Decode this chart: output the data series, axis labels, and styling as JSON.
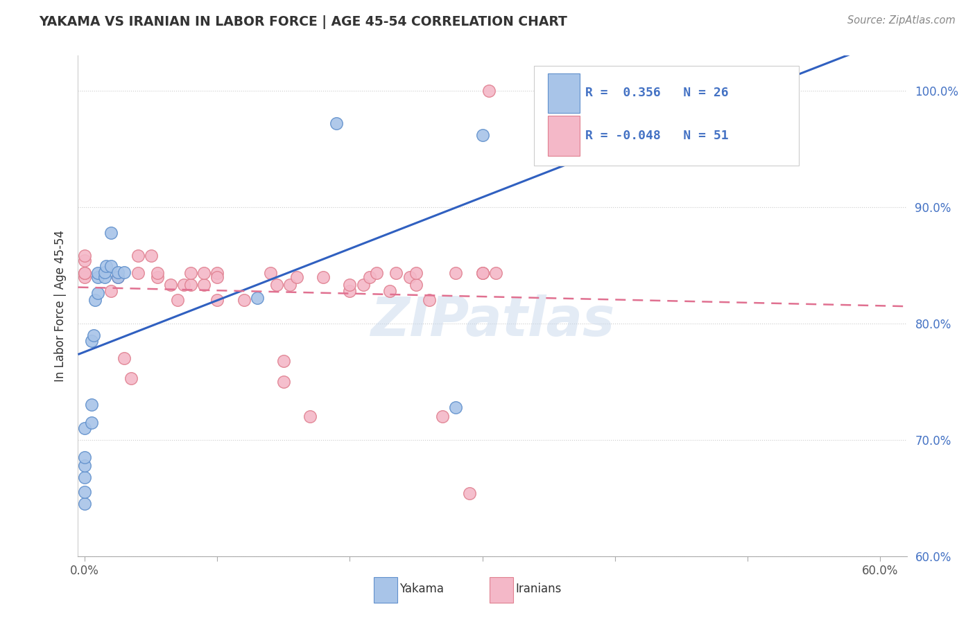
{
  "title": "YAKAMA VS IRANIAN IN LABOR FORCE | AGE 45-54 CORRELATION CHART",
  "source_text": "Source: ZipAtlas.com",
  "ylabel": "In Labor Force | Age 45-54",
  "xlim": [
    -0.005,
    0.62
  ],
  "ylim": [
    0.6,
    1.03
  ],
  "y_ticks": [
    0.6,
    0.7,
    0.8,
    0.9,
    1.0
  ],
  "y_tick_labels": [
    "60.0%",
    "70.0%",
    "80.0%",
    "90.0%",
    "100.0%"
  ],
  "x_ticks": [
    0.0,
    0.1,
    0.2,
    0.3,
    0.4,
    0.5,
    0.6
  ],
  "x_tick_label_0": "0.0%",
  "x_tick_label_last": "60.0%",
  "color_yakama_fill": "#a8c4e8",
  "color_yakama_edge": "#6090cc",
  "color_iranian_fill": "#f4b8c8",
  "color_iranian_edge": "#e08090",
  "color_line_yakama": "#3060c0",
  "color_line_iranian": "#e07090",
  "background_color": "#ffffff",
  "grid_color": "#cccccc",
  "watermark": "ZIPatlas",
  "watermark_color": "#c8d8ec",
  "title_color": "#333333",
  "ylabel_color": "#333333",
  "tick_color_y": "#4472c4",
  "tick_color_x": "#555555",
  "legend_text_color": "#4472c4",
  "legend_label_color": "#333333",
  "source_color": "#888888",
  "yakama_x": [
    0.0,
    0.0,
    0.0,
    0.0,
    0.0,
    0.0,
    0.005,
    0.005,
    0.005,
    0.007,
    0.008,
    0.01,
    0.01,
    0.01,
    0.015,
    0.015,
    0.016,
    0.02,
    0.02,
    0.025,
    0.025,
    0.03,
    0.13,
    0.19,
    0.28,
    0.3
  ],
  "yakama_y": [
    0.645,
    0.655,
    0.668,
    0.678,
    0.685,
    0.71,
    0.715,
    0.73,
    0.785,
    0.79,
    0.82,
    0.826,
    0.84,
    0.843,
    0.84,
    0.844,
    0.849,
    0.849,
    0.878,
    0.84,
    0.844,
    0.844,
    0.822,
    0.972,
    0.728,
    0.962
  ],
  "iranian_x": [
    0.0,
    0.0,
    0.0,
    0.0,
    0.0,
    0.02,
    0.025,
    0.03,
    0.035,
    0.04,
    0.04,
    0.05,
    0.055,
    0.055,
    0.065,
    0.07,
    0.075,
    0.08,
    0.08,
    0.09,
    0.09,
    0.1,
    0.1,
    0.1,
    0.12,
    0.14,
    0.145,
    0.15,
    0.15,
    0.155,
    0.16,
    0.17,
    0.18,
    0.2,
    0.2,
    0.21,
    0.215,
    0.22,
    0.23,
    0.235,
    0.245,
    0.25,
    0.25,
    0.26,
    0.27,
    0.28,
    0.29,
    0.3,
    0.3,
    0.305,
    0.31
  ],
  "iranian_y": [
    0.84,
    0.843,
    0.843,
    0.854,
    0.858,
    0.828,
    0.84,
    0.77,
    0.753,
    0.843,
    0.858,
    0.858,
    0.84,
    0.843,
    0.833,
    0.82,
    0.833,
    0.833,
    0.843,
    0.833,
    0.843,
    0.843,
    0.84,
    0.82,
    0.82,
    0.843,
    0.833,
    0.75,
    0.768,
    0.833,
    0.84,
    0.72,
    0.84,
    0.828,
    0.833,
    0.833,
    0.84,
    0.843,
    0.828,
    0.843,
    0.84,
    0.833,
    0.843,
    0.82,
    0.72,
    0.843,
    0.654,
    0.843,
    0.843,
    1.0,
    0.843
  ]
}
